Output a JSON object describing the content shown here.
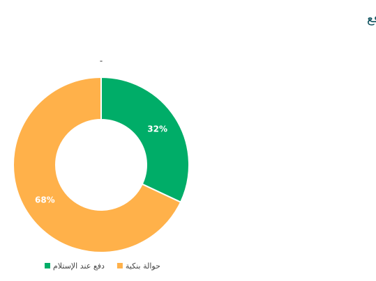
{
  "chart_data": {
    "type": "pie",
    "title": "طرق الدفع",
    "subtitle": "-",
    "categories": [
      "دفع عند الإستلام",
      "حوالة بنكية"
    ],
    "values": [
      32,
      68
    ],
    "value_labels": [
      "32%",
      "68%"
    ],
    "colors": [
      "#00ad68",
      "#ffb14a"
    ],
    "donut": true
  }
}
